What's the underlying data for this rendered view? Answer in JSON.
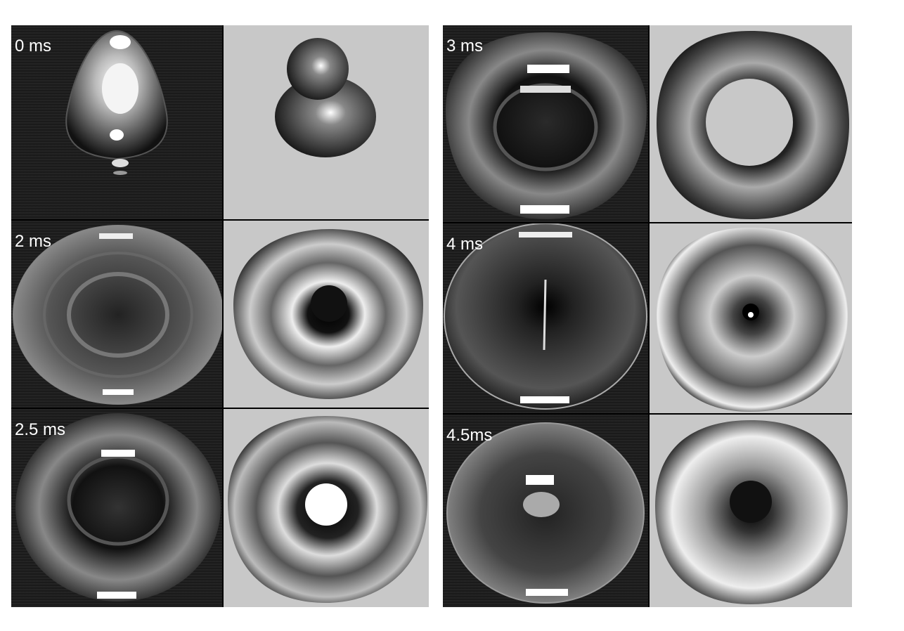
{
  "panels": [
    {
      "time_label": "0 ms"
    },
    {
      "time_label": "2 ms"
    },
    {
      "time_label": "2.5 ms"
    },
    {
      "time_label": "3 ms"
    },
    {
      "time_label": "4 ms"
    },
    {
      "time_label": "4.5ms"
    }
  ],
  "colors": {
    "background": "#ffffff",
    "simulation_background": "#c8c8c8",
    "photo_background": "#1e1e1e",
    "label_text": "#ffffff",
    "divider": "#000000"
  }
}
